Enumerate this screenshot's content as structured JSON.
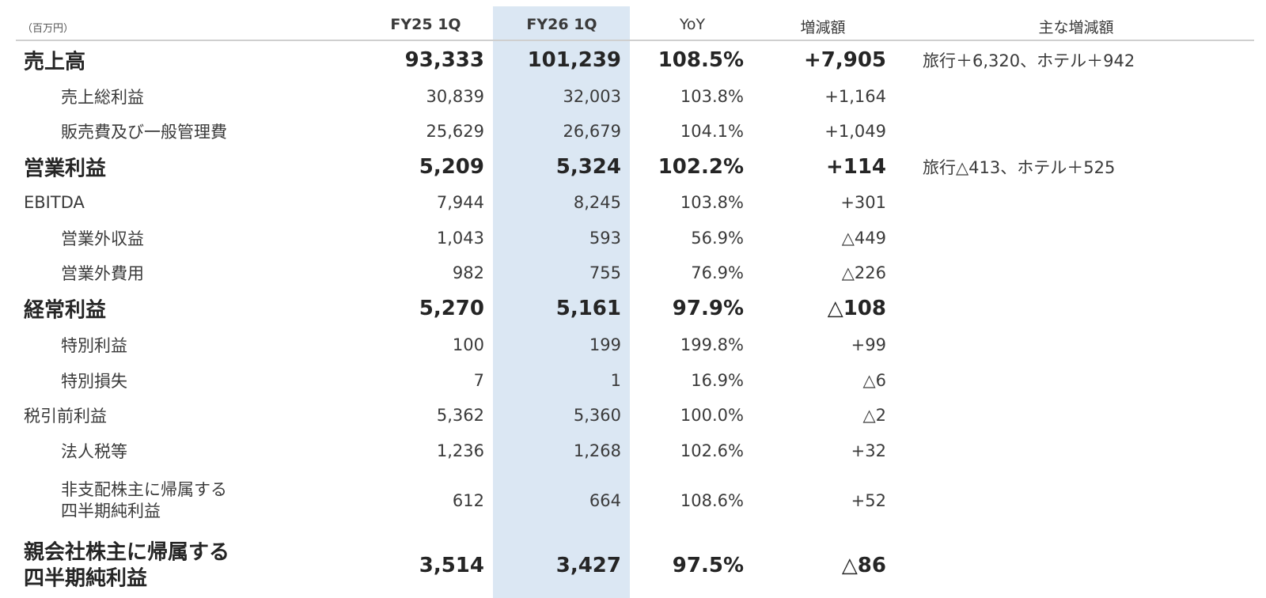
{
  "table": {
    "unit": "（百万円）",
    "headers": {
      "fy25": "FY25 1Q",
      "fy26": "FY26 1Q",
      "yoy": "YoY",
      "change": "増減額",
      "main_change": "主な増減額"
    },
    "highlight_color": "#dbe7f3",
    "rows": [
      {
        "label": "売上高",
        "fy25": "93,333",
        "fy26": "101,239",
        "yoy": "108.5%",
        "change": "+7,905",
        "note": "旅行＋6,320、ホテル＋942"
      },
      {
        "label": "売上総利益",
        "fy25": "30,839",
        "fy26": "32,003",
        "yoy": "103.8%",
        "change": "+1,164",
        "note": ""
      },
      {
        "label": "販売費及び一般管理費",
        "fy25": "25,629",
        "fy26": "26,679",
        "yoy": "104.1%",
        "change": "+1,049",
        "note": ""
      },
      {
        "label": "営業利益",
        "fy25": "5,209",
        "fy26": "5,324",
        "yoy": "102.2%",
        "change": "+114",
        "note": "旅行△413、ホテル＋525"
      },
      {
        "label": "EBITDA",
        "fy25": "7,944",
        "fy26": "8,245",
        "yoy": "103.8%",
        "change": "+301",
        "note": ""
      },
      {
        "label": "営業外収益",
        "fy25": "1,043",
        "fy26": "593",
        "yoy": "56.9%",
        "change": "△449",
        "note": ""
      },
      {
        "label": "営業外費用",
        "fy25": "982",
        "fy26": "755",
        "yoy": "76.9%",
        "change": "△226",
        "note": ""
      },
      {
        "label": "経常利益",
        "fy25": "5,270",
        "fy26": "5,161",
        "yoy": "97.9%",
        "change": "△108",
        "note": ""
      },
      {
        "label": "特別利益",
        "fy25": "100",
        "fy26": "199",
        "yoy": "199.8%",
        "change": "+99",
        "note": ""
      },
      {
        "label": "特別損失",
        "fy25": "7",
        "fy26": "1",
        "yoy": "16.9%",
        "change": "△6",
        "note": ""
      },
      {
        "label": "税引前利益",
        "fy25": "5,362",
        "fy26": "5,360",
        "yoy": "100.0%",
        "change": "△2",
        "note": ""
      },
      {
        "label": "法人税等",
        "fy25": "1,236",
        "fy26": "1,268",
        "yoy": "102.6%",
        "change": "+32",
        "note": ""
      },
      {
        "label": "非支配株主に帰属する\n四半期純利益",
        "fy25": "612",
        "fy26": "664",
        "yoy": "108.6%",
        "change": "+52",
        "note": ""
      },
      {
        "label": "親会社株主に帰属する\n四半期純利益",
        "fy25": "3,514",
        "fy26": "3,427",
        "yoy": "97.5%",
        "change": "△86",
        "note": ""
      }
    ]
  }
}
